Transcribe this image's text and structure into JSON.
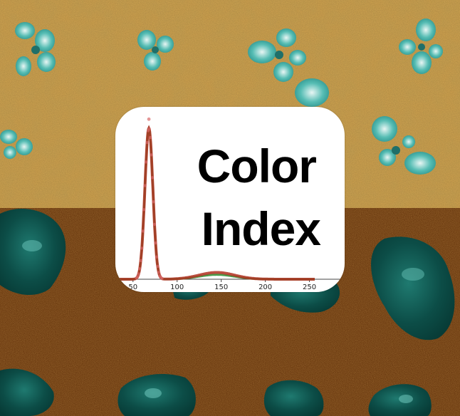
{
  "title_lines": [
    "Color",
    "Index"
  ],
  "chart_data": {
    "type": "line",
    "x_ticks": [
      50,
      100,
      150,
      200,
      250
    ],
    "xlim": [
      30,
      256
    ],
    "ylim": [
      0,
      1
    ],
    "series": [
      {
        "color": "#2e8b2e",
        "peak_x": 68,
        "sigma": 4.5,
        "secondary_peak_x": 145,
        "secondary_height": 0.03
      },
      {
        "color": "#b03020",
        "peak_x": 68,
        "sigma": 4.5,
        "secondary_peak_x": 145,
        "secondary_height": 0.045
      }
    ],
    "points_color": "#d96a6a"
  },
  "colors": {
    "soil_light": "#d4a550",
    "soil_dark": "#6b3a10",
    "plant_light": "#4fb8b0",
    "plant_dark": "#0b4a44"
  }
}
